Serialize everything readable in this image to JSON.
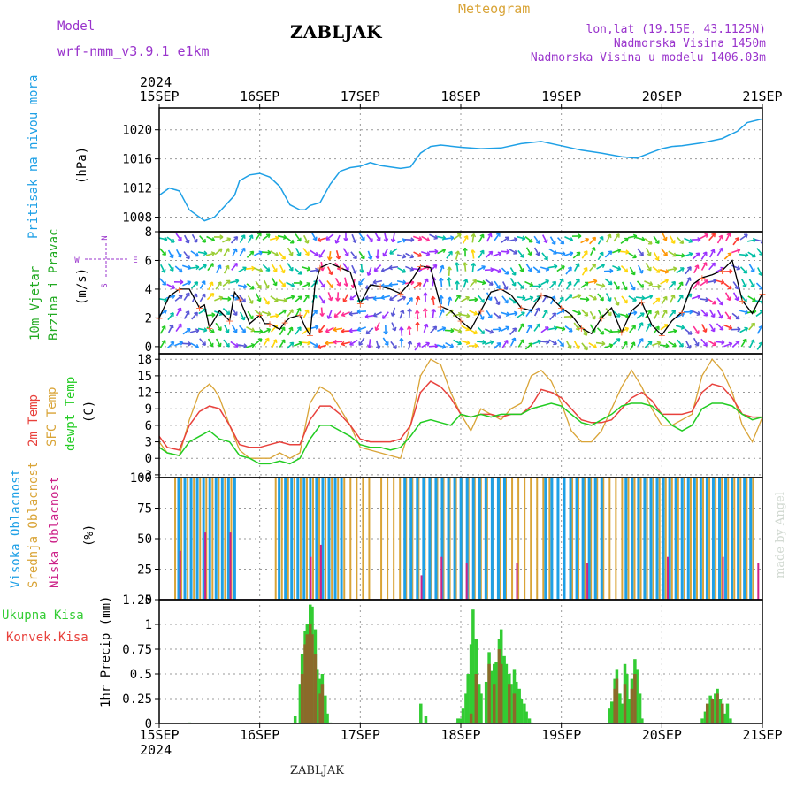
{
  "header": {
    "model_label": "Model",
    "model_name": "wrf-nmm_v3.9.1 e1km",
    "station": "ZABLJAK",
    "product": "Meteogram",
    "lonlat": "lon,lat (19.15E, 43.1125N)",
    "elevation": "Nadmorska Visina 1450m",
    "model_elevation": "Nadmorska Visina u modelu 1406.03m",
    "year_top": "2024",
    "year_bottom": "2024",
    "footer_station": "ZABLJAK",
    "watermark": "made by Angel"
  },
  "colors": {
    "pressure": "#1ea0e6",
    "temp2m": "#e8413c",
    "sfc": "#d9a437",
    "dewpt": "#22cc22",
    "high_cloud": "#1ea0e6",
    "mid_cloud": "#d9a437",
    "low_cloud": "#cc2288",
    "total_precip": "#33cc33",
    "conv_precip": "#8b6a2a",
    "purple": "#9933cc"
  },
  "chart_data": [
    {
      "type": "line",
      "title": "Pritisak na nivou mora",
      "ylabel": "(hPa)",
      "ylim": [
        1006,
        1023
      ],
      "yticks": [
        1008,
        1012,
        1016,
        1020
      ],
      "xlim": [
        0,
        6
      ],
      "xticks": [
        "15SEP",
        "16SEP",
        "17SEP",
        "18SEP",
        "19SEP",
        "20SEP",
        "21SEP"
      ],
      "series": [
        {
          "name": "Pritisak na nivou mora",
          "x": [
            0,
            0.1,
            0.2,
            0.3,
            0.45,
            0.55,
            0.65,
            0.75,
            0.8,
            0.9,
            1.0,
            1.1,
            1.2,
            1.3,
            1.4,
            1.45,
            1.5,
            1.6,
            1.7,
            1.8,
            1.9,
            2.0,
            2.1,
            2.2,
            2.3,
            2.4,
            2.5,
            2.6,
            2.7,
            2.8,
            3.0,
            3.2,
            3.4,
            3.6,
            3.8,
            4.0,
            4.2,
            4.4,
            4.6,
            4.75,
            4.9,
            5.0,
            5.1,
            5.2,
            5.4,
            5.6,
            5.75,
            5.85,
            6.0
          ],
          "y": [
            1011,
            1012,
            1011.6,
            1009,
            1007.5,
            1008,
            1009.5,
            1011,
            1013,
            1013.8,
            1014,
            1013.5,
            1012.2,
            1009.7,
            1009,
            1009,
            1009.6,
            1010,
            1012.5,
            1014.3,
            1014.8,
            1015,
            1015.5,
            1015.1,
            1014.9,
            1014.7,
            1014.9,
            1016.8,
            1017.7,
            1017.9,
            1017.6,
            1017.4,
            1017.5,
            1018.1,
            1018.4,
            1017.8,
            1017.2,
            1016.8,
            1016.3,
            1016.1,
            1016.9,
            1017.4,
            1017.7,
            1017.8,
            1018.2,
            1018.8,
            1019.8,
            1021,
            1021.5
          ]
        }
      ]
    },
    {
      "type": "line",
      "title": "10m Vjetar Brzina i Pravac",
      "ylabel": "(m/s)",
      "ylim": [
        -0.5,
        8
      ],
      "yticks": [
        0,
        2,
        4,
        6,
        8
      ],
      "compass": [
        "N",
        "W",
        "E",
        "S"
      ],
      "series": [
        {
          "name": "10m Vjetar Brzina",
          "x": [
            0,
            0.1,
            0.2,
            0.3,
            0.4,
            0.45,
            0.5,
            0.6,
            0.7,
            0.75,
            0.8,
            0.9,
            1.0,
            1.05,
            1.1,
            1.2,
            1.25,
            1.3,
            1.4,
            1.45,
            1.5,
            1.55,
            1.6,
            1.7,
            1.8,
            1.9,
            2.0,
            2.1,
            2.2,
            2.3,
            2.4,
            2.5,
            2.6,
            2.7,
            2.8,
            2.9,
            3.0,
            3.1,
            3.2,
            3.3,
            3.4,
            3.5,
            3.6,
            3.7,
            3.8,
            3.9,
            4.0,
            4.1,
            4.2,
            4.3,
            4.4,
            4.5,
            4.6,
            4.7,
            4.8,
            4.9,
            5.0,
            5.1,
            5.2,
            5.3,
            5.4,
            5.5,
            5.6,
            5.7,
            5.8,
            5.9,
            6.0
          ],
          "y": [
            2,
            3.5,
            4,
            4,
            2.7,
            2.9,
            1.3,
            2.5,
            1.8,
            3.8,
            3.3,
            1.6,
            2.2,
            1.6,
            1.6,
            1.2,
            1.7,
            2,
            2.2,
            1.4,
            0.8,
            4.3,
            5.5,
            5.8,
            5.5,
            5.2,
            3,
            4.3,
            4.2,
            4,
            3.7,
            4.5,
            5.6,
            5.5,
            2.8,
            2.5,
            1.8,
            1.2,
            2.5,
            3.8,
            4,
            3.6,
            2.7,
            2.5,
            3.6,
            3.4,
            2.7,
            2.2,
            1.3,
            0.9,
            2,
            2.7,
            1,
            2.5,
            3.1,
            1.5,
            0.8,
            1.8,
            2.4,
            4.3,
            4.8,
            5,
            5.3,
            6,
            3.2,
            2.3,
            3.7
          ]
        }
      ]
    },
    {
      "type": "line",
      "ylabel": "(C)",
      "ylim": [
        -3.5,
        19
      ],
      "yticks": [
        -3,
        0,
        3,
        6,
        9,
        12,
        15,
        18
      ],
      "series": [
        {
          "name": "2m Temp",
          "x": [
            0,
            0.08,
            0.2,
            0.3,
            0.4,
            0.5,
            0.6,
            0.7,
            0.8,
            0.9,
            1.0,
            1.1,
            1.2,
            1.3,
            1.4,
            1.5,
            1.6,
            1.7,
            1.8,
            1.9,
            2.0,
            2.1,
            2.2,
            2.3,
            2.4,
            2.5,
            2.6,
            2.7,
            2.8,
            2.9,
            3.0,
            3.1,
            3.2,
            3.3,
            3.4,
            3.5,
            3.6,
            3.7,
            3.8,
            3.9,
            4.0,
            4.1,
            4.2,
            4.3,
            4.4,
            4.5,
            4.6,
            4.7,
            4.8,
            4.9,
            5.0,
            5.1,
            5.2,
            5.3,
            5.4,
            5.5,
            5.6,
            5.7,
            5.8,
            5.9,
            6.0
          ],
          "y": [
            4,
            2,
            1.5,
            6,
            8.5,
            9.5,
            9,
            6,
            2.5,
            2,
            2,
            2.5,
            3,
            2.5,
            2.5,
            7,
            9.5,
            9.5,
            8,
            6,
            3.5,
            3,
            3,
            3,
            3.5,
            6,
            12,
            14,
            13,
            11,
            8,
            7.5,
            8,
            8,
            7.5,
            8,
            8,
            9.5,
            12.5,
            12,
            11,
            9,
            7,
            6.5,
            6.5,
            7,
            9,
            11,
            12,
            10.5,
            8,
            8,
            8,
            8.5,
            12,
            13.5,
            13,
            11,
            8,
            7.5,
            7.5
          ]
        },
        {
          "name": "SFC Temp",
          "x": [
            0,
            0.08,
            0.2,
            0.3,
            0.4,
            0.5,
            0.55,
            0.6,
            0.7,
            0.8,
            0.9,
            1.0,
            1.1,
            1.2,
            1.3,
            1.4,
            1.5,
            1.6,
            1.7,
            1.8,
            1.9,
            2.0,
            2.1,
            2.2,
            2.3,
            2.4,
            2.5,
            2.6,
            2.7,
            2.8,
            2.9,
            3.0,
            3.1,
            3.2,
            3.3,
            3.4,
            3.5,
            3.6,
            3.7,
            3.8,
            3.9,
            4.0,
            4.1,
            4.2,
            4.3,
            4.4,
            4.5,
            4.6,
            4.7,
            4.8,
            4.9,
            5.0,
            5.1,
            5.2,
            5.3,
            5.4,
            5.5,
            5.6,
            5.7,
            5.8,
            5.9,
            6.0
          ],
          "y": [
            3,
            1,
            0.5,
            7,
            12,
            13.5,
            12.5,
            11,
            6,
            1.5,
            0,
            0,
            0,
            1,
            0,
            1,
            10,
            13,
            12,
            9,
            6,
            2,
            1.5,
            1,
            0.5,
            0,
            6,
            15,
            18,
            17,
            12,
            8,
            5,
            9,
            8,
            7,
            9,
            10,
            15,
            16,
            14,
            10,
            5,
            3,
            3,
            5,
            9,
            13,
            16,
            13,
            9,
            6,
            6,
            7,
            8,
            15,
            18,
            16,
            12,
            6,
            3,
            7.5
          ]
        },
        {
          "name": "dewpt Temp",
          "x": [
            0,
            0.08,
            0.2,
            0.3,
            0.4,
            0.5,
            0.6,
            0.7,
            0.8,
            0.9,
            1.0,
            1.1,
            1.2,
            1.3,
            1.4,
            1.5,
            1.6,
            1.7,
            1.8,
            1.9,
            2.0,
            2.1,
            2.2,
            2.3,
            2.4,
            2.5,
            2.6,
            2.7,
            2.8,
            2.9,
            3.0,
            3.1,
            3.2,
            3.3,
            3.4,
            3.5,
            3.6,
            3.7,
            3.8,
            3.9,
            4.0,
            4.1,
            4.2,
            4.3,
            4.4,
            4.5,
            4.6,
            4.7,
            4.8,
            4.9,
            5.0,
            5.1,
            5.2,
            5.3,
            5.4,
            5.5,
            5.6,
            5.7,
            5.8,
            5.9,
            6.0
          ],
          "y": [
            2,
            1,
            0.5,
            3,
            4,
            5,
            3.5,
            3,
            0.5,
            0,
            -1,
            -1,
            -0.5,
            -1,
            0,
            3.5,
            6,
            6,
            5,
            4,
            2.5,
            2,
            2,
            1.5,
            2,
            4,
            6.5,
            7,
            6.5,
            6,
            8,
            7.5,
            8,
            7.5,
            8,
            8,
            8,
            9,
            9.5,
            10,
            9.5,
            8,
            6.5,
            6,
            7,
            8,
            9.5,
            10,
            10,
            9.5,
            8,
            6,
            5,
            6,
            9,
            10,
            10,
            9.5,
            8,
            7,
            7.5
          ]
        }
      ]
    },
    {
      "type": "bar",
      "ylabel": "(%)",
      "ylim": [
        0,
        100
      ],
      "yticks": [
        0,
        25,
        50,
        75,
        100
      ],
      "series": [
        {
          "name": "Visoka Oblacnost",
          "segments": [
            [
              0.15,
              0.75
            ],
            [
              1.15,
              1.85
            ],
            [
              2.4,
              3.45
            ],
            [
              3.8,
              4.4
            ],
            [
              4.6,
              5.9
            ]
          ],
          "value": 100
        },
        {
          "name": "Srednja Oblacnost",
          "segments": [
            [
              0.15,
              0.75
            ],
            [
              1.15,
              2.1
            ],
            [
              2.2,
              3.9
            ],
            [
              4.1,
              5.9
            ]
          ],
          "value": 100
        },
        {
          "name": "Niska Oblacnost",
          "values": [
            [
              0.2,
              40
            ],
            [
              0.45,
              55
            ],
            [
              0.7,
              55
            ],
            [
              1.5,
              35
            ],
            [
              1.6,
              45
            ],
            [
              2.6,
              20
            ],
            [
              2.8,
              35
            ],
            [
              3.05,
              30
            ],
            [
              3.55,
              30
            ],
            [
              4.25,
              30
            ],
            [
              5.05,
              35
            ],
            [
              5.6,
              35
            ],
            [
              5.95,
              30
            ]
          ]
        }
      ]
    },
    {
      "type": "bar",
      "ylabel": "1hr Precip (mm)",
      "ylim": [
        0,
        1.25
      ],
      "yticks": [
        0,
        0.25,
        0.5,
        0.75,
        1,
        1.25
      ],
      "series": [
        {
          "name": "Ukupna Kisa",
          "x": [
            0.3,
            1.35,
            1.4,
            1.42,
            1.45,
            1.47,
            1.5,
            1.52,
            1.55,
            1.57,
            1.6,
            1.62,
            1.65,
            1.67,
            1.7,
            2.6,
            2.65,
            2.95,
            2.97,
            3.0,
            3.02,
            3.05,
            3.07,
            3.1,
            3.12,
            3.15,
            3.18,
            3.2,
            3.25,
            3.28,
            3.3,
            3.33,
            3.35,
            3.38,
            3.4,
            3.43,
            3.45,
            3.48,
            3.5,
            3.53,
            3.55,
            3.58,
            3.6,
            3.63,
            3.65,
            3.68,
            3.7,
            4.48,
            4.5,
            4.53,
            4.55,
            4.58,
            4.6,
            4.63,
            4.65,
            4.68,
            4.7,
            4.73,
            4.75,
            4.78,
            4.8,
            5.4,
            5.43,
            5.45,
            5.48,
            5.5,
            5.53,
            5.55,
            5.58,
            5.6,
            5.63,
            5.65,
            5.68,
            5.7
          ],
          "y": [
            0.01,
            0.08,
            0.4,
            0.7,
            0.93,
            1,
            1.2,
            1.18,
            0.95,
            0.55,
            0.45,
            0.5,
            0.28,
            0.1,
            0.01,
            0.2,
            0.08,
            0.01,
            0.05,
            0.05,
            0.15,
            0.3,
            0.5,
            0.8,
            1.15,
            0.85,
            0.4,
            0.3,
            0.42,
            0.72,
            0.53,
            0.6,
            0.62,
            0.85,
            0.95,
            0.68,
            0.6,
            0.5,
            0.4,
            0.55,
            0.42,
            0.35,
            0.25,
            0.2,
            0.12,
            0.05,
            0.01,
            0.15,
            0.22,
            0.45,
            0.55,
            0.3,
            0.2,
            0.6,
            0.5,
            0.25,
            0.45,
            0.65,
            0.55,
            0.3,
            0.05,
            0.05,
            0.12,
            0.18,
            0.28,
            0.2,
            0.3,
            0.35,
            0.25,
            0.15,
            0.1,
            0.2,
            0.05,
            0.01
          ]
        },
        {
          "name": "Konvek.Kisa",
          "x": [
            1.42,
            1.45,
            1.47,
            1.5,
            1.52,
            1.55,
            1.6,
            1.62,
            3.1,
            3.15,
            3.28,
            3.33,
            3.38,
            3.4,
            3.48,
            3.53,
            4.53,
            4.55,
            4.63,
            4.7,
            4.73,
            5.45,
            5.5,
            5.55,
            5.6
          ],
          "y": [
            0.5,
            0.8,
            0.9,
            1,
            0.9,
            0.7,
            0.3,
            0.4,
            0.1,
            0.5,
            0.6,
            0.4,
            0.75,
            0.6,
            0.4,
            0.3,
            0.35,
            0.45,
            0.4,
            0.35,
            0.5,
            0.2,
            0.25,
            0.3,
            0.2
          ]
        }
      ]
    }
  ]
}
